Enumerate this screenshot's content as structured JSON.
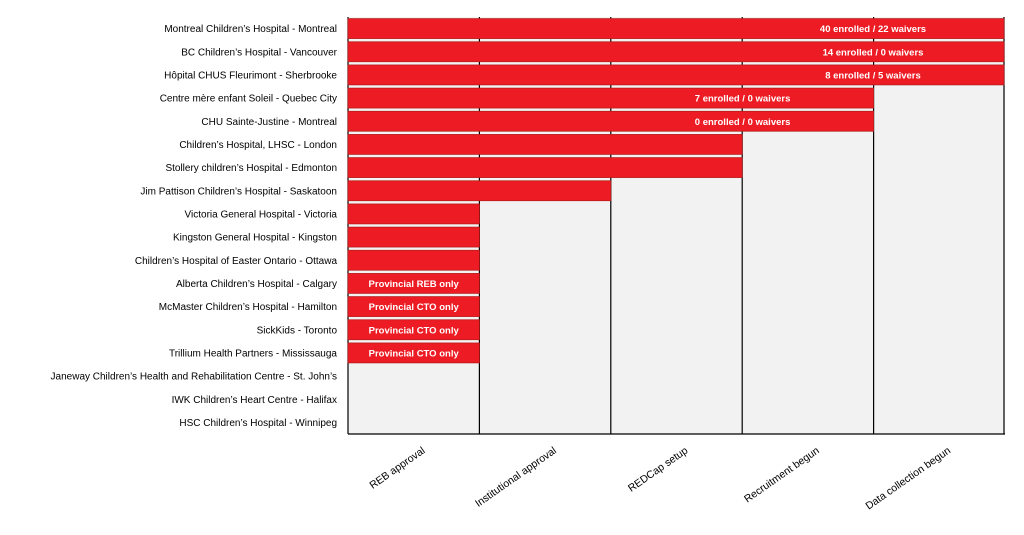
{
  "chart_data": {
    "type": "bar",
    "orientation": "horizontal",
    "title": "",
    "xlabel": "",
    "ylabel": "",
    "stages": [
      "REB approval",
      "Institutional approval",
      "REDCap setup",
      "Recruitment begun",
      "Data collection begun"
    ],
    "xlim": [
      0,
      5
    ],
    "grid": true,
    "bar_color": "#ed1c24",
    "bar_edge_color": "#b71c1c",
    "plot_background": "#f2f2f2",
    "rows": [
      {
        "site": "Montreal Children’s Hospital - Montreal",
        "stages_completed": 5,
        "annotation": "40 enrolled / 22 waivers"
      },
      {
        "site": "BC Children’s Hospital - Vancouver",
        "stages_completed": 5,
        "annotation": "14 enrolled / 0 waivers"
      },
      {
        "site": "Hôpital CHUS Fleurimont - Sherbrooke",
        "stages_completed": 5,
        "annotation": "8 enrolled / 5 waivers"
      },
      {
        "site": "Centre mère enfant Soleil - Quebec City",
        "stages_completed": 4,
        "annotation": "7 enrolled / 0 waivers"
      },
      {
        "site": "CHU Sainte-Justine - Montreal",
        "stages_completed": 4,
        "annotation": "0 enrolled / 0 waivers"
      },
      {
        "site": "Children’s Hospital, LHSC - London",
        "stages_completed": 3,
        "annotation": ""
      },
      {
        "site": "Stollery children’s Hospital - Edmonton",
        "stages_completed": 3,
        "annotation": ""
      },
      {
        "site": "Jim Pattison Children’s Hospital - Saskatoon",
        "stages_completed": 2,
        "annotation": ""
      },
      {
        "site": "Victoria General Hospital - Victoria",
        "stages_completed": 1,
        "annotation": ""
      },
      {
        "site": "Kingston General Hospital - Kingston",
        "stages_completed": 1,
        "annotation": ""
      },
      {
        "site": "Children’s Hospital of Easter Ontario - Ottawa",
        "stages_completed": 1,
        "annotation": ""
      },
      {
        "site": "Alberta Children’s Hospital - Calgary",
        "stages_completed": 1,
        "annotation": "Provincial REB only"
      },
      {
        "site": "McMaster Children’s Hospital - Hamilton",
        "stages_completed": 1,
        "annotation": "Provincial CTO only"
      },
      {
        "site": "SickKids - Toronto",
        "stages_completed": 1,
        "annotation": "Provincial CTO only"
      },
      {
        "site": "Trillium Health Partners - Mississauga",
        "stages_completed": 1,
        "annotation": "Provincial CTO only"
      },
      {
        "site": "Janeway Children’s Health and Rehabilitation Centre - St. John’s",
        "stages_completed": 0,
        "annotation": ""
      },
      {
        "site": "IWK Children’s Heart Centre - Halifax",
        "stages_completed": 0,
        "annotation": ""
      },
      {
        "site": "HSC Children’s Hospital - Winnipeg",
        "stages_completed": 0,
        "annotation": ""
      }
    ]
  }
}
